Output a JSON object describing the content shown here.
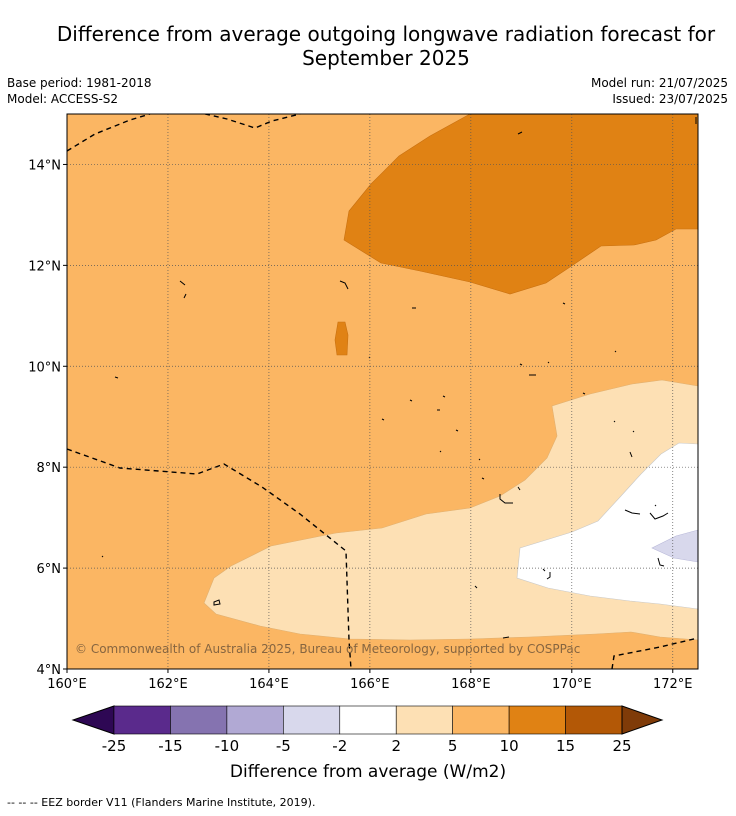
{
  "title": "Difference from average outgoing longwave radiation forecast for September 2025",
  "title_line1": "Difference from average outgoing longwave radiation forecast for",
  "title_line2": "September 2025",
  "base_period": "Base period: 1981-2018",
  "model": "Model: ACCESS-S2",
  "model_run": "Model run: 21/07/2025",
  "issued": "Issued: 23/07/2025",
  "copyright": "© Commonwealth of Australia 2025, Bureau of Meteorology, supported by COSPPac",
  "axes": {
    "lon_ticks": [
      "160°E",
      "162°E",
      "164°E",
      "166°E",
      "168°E",
      "170°E",
      "172°E"
    ],
    "lat_ticks": [
      "4°N",
      "6°N",
      "8°N",
      "10°N",
      "12°N",
      "14°N"
    ],
    "lon_range": [
      160,
      172.5
    ],
    "lat_range": [
      4,
      15
    ]
  },
  "colorbar": {
    "label": "Difference from average (W/m2)",
    "ticks": [
      "-25",
      "-15",
      "-10",
      "-5",
      "-2",
      "2",
      "5",
      "10",
      "15",
      "25"
    ],
    "colors": [
      "#2e0854",
      "#5a2a8c",
      "#8573b0",
      "#b1a9d4",
      "#d8d8ec",
      "#ffffff",
      "#fde0b4",
      "#fbb663",
      "#e08214",
      "#b35806",
      "#7f3b08"
    ]
  },
  "legend_footnote": "--  --  -- EEZ border V11 (Flanders Marine Institute, 2019).",
  "regions": [
    {
      "name": "moderate-positive",
      "range": "5 to 10",
      "color": "#fbb663"
    },
    {
      "name": "strong-positive",
      "range": "10 to 15",
      "color": "#e08214"
    },
    {
      "name": "weak-positive",
      "range": "2 to 5",
      "color": "#fde0b4"
    },
    {
      "name": "near-average",
      "range": "-2 to 2",
      "color": "#ffffff"
    },
    {
      "name": "weak-negative",
      "range": "-5 to -2",
      "color": "#d8d8ec"
    }
  ]
}
